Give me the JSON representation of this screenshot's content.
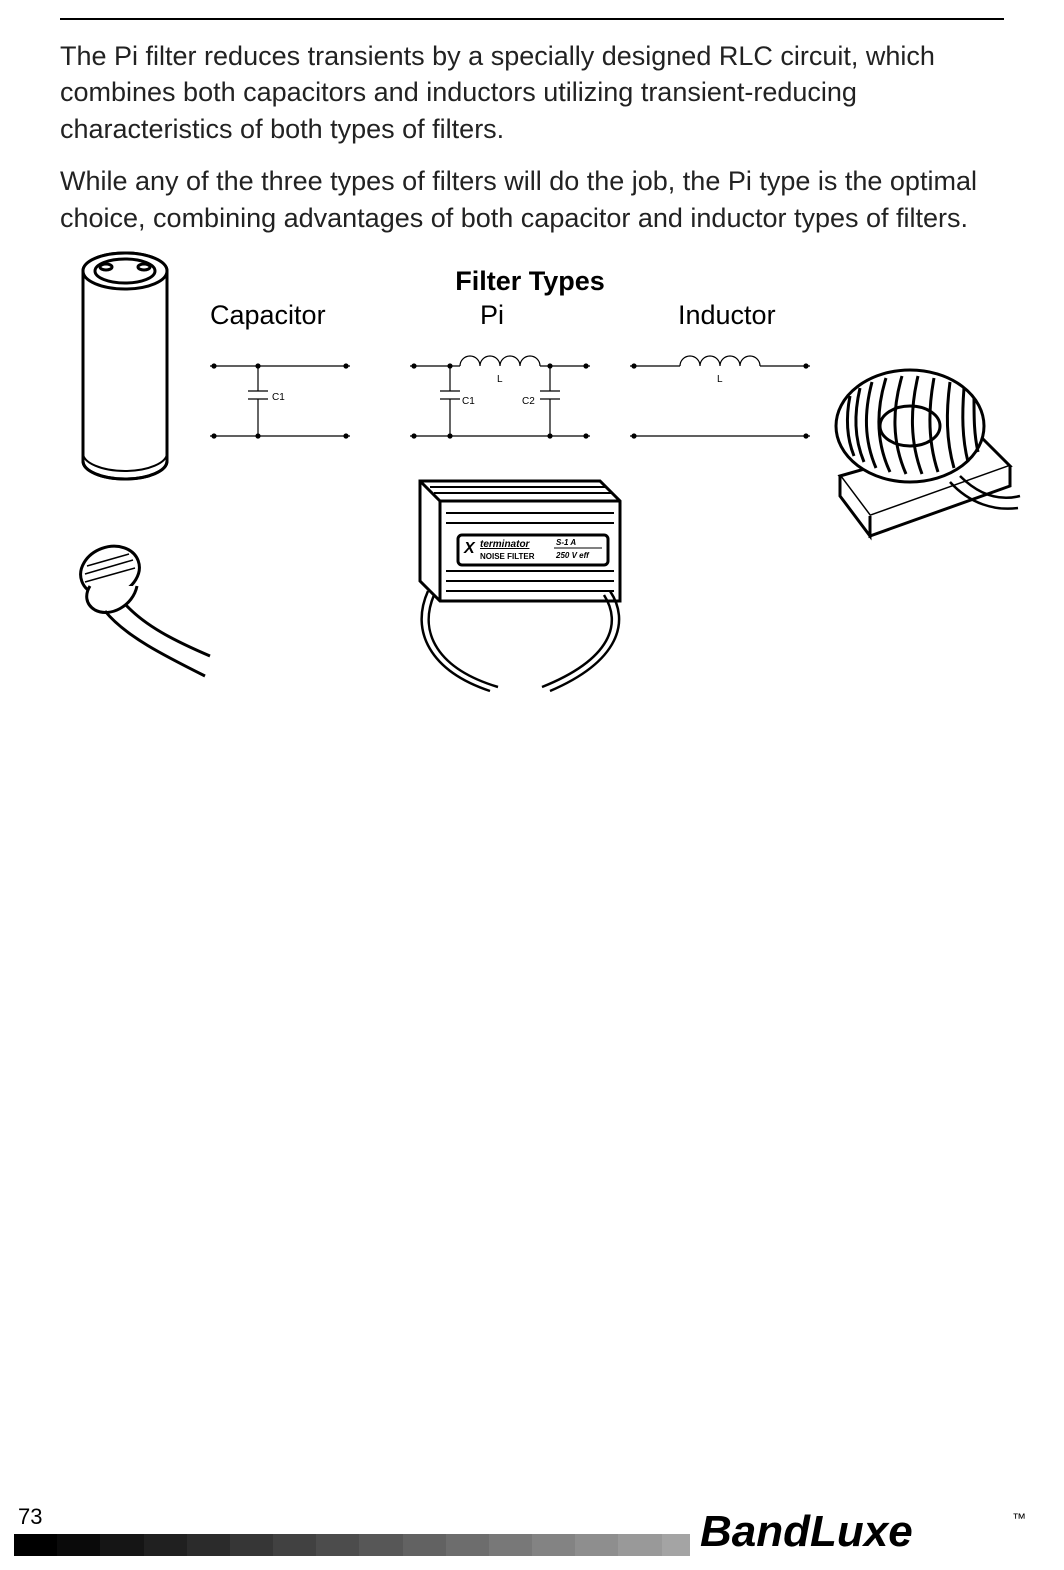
{
  "paragraphs": {
    "p1": "The Pi filter reduces transients by a specially designed RLC circuit, which combines both capacitors and inductors utilizing transient-reducing characteristics of both types of filters.",
    "p2": "While any of the three types of filters will do the job, the Pi type is the optimal choice, combining advantages of both capacitor and inductor types of filters."
  },
  "figure": {
    "title": "Filter Types",
    "columns": {
      "capacitor": "Capacitor",
      "pi": "Pi",
      "inductor": "Inductor"
    },
    "schematic_labels": {
      "c1": "C1",
      "c2": "C2",
      "l": "L"
    },
    "noise_filter_box": {
      "brand_x": "X",
      "brand_name": "terminator",
      "subtitle": "NOISE FILTER",
      "rating_top": "S-1 A",
      "rating_bottom": "250 V eff"
    }
  },
  "footer": {
    "page_number": "73",
    "logo_text": "BandLuxe",
    "tm": "™",
    "gradient_colors": [
      "#000000",
      "#0a0a0a",
      "#151515",
      "#202020",
      "#2b2b2b",
      "#363636",
      "#414141",
      "#4c4c4c",
      "#575757",
      "#626262",
      "#6d6d6d",
      "#787878",
      "#838383",
      "#8e8e8e",
      "#999999",
      "#a4a4a4",
      "#afafaf",
      "#bababa",
      "#c5c5c5",
      "#d0d0d0",
      "#dbdbdb",
      "#e6e6e6",
      "#f1f1f1",
      "#ffffff"
    ]
  },
  "colors": {
    "text": "#000000",
    "stroke": "#000000",
    "bg": "#ffffff"
  }
}
